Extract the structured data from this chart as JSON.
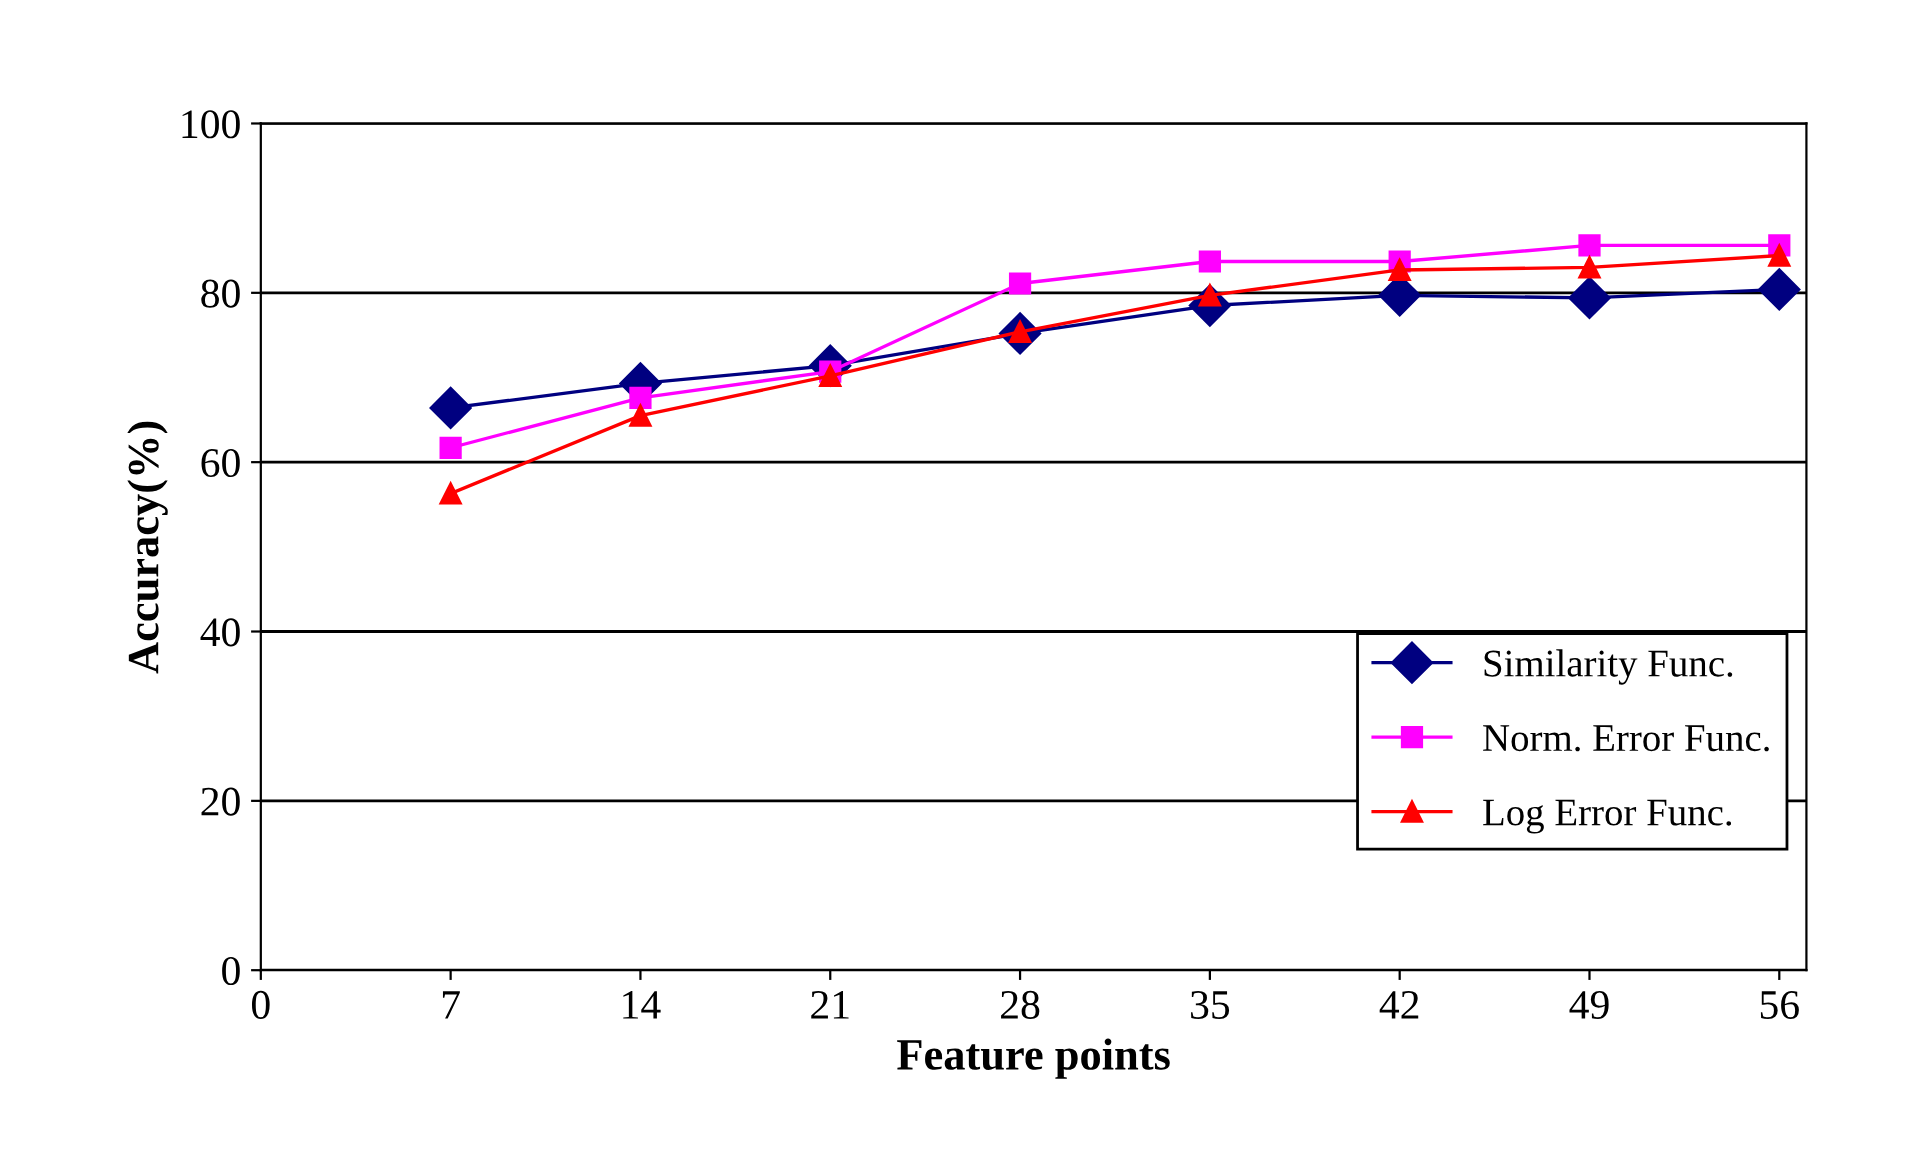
{
  "chart_data": {
    "type": "line",
    "xlabel": "Feature points",
    "ylabel": "Accuracy(%)",
    "x": [
      7,
      14,
      21,
      28,
      35,
      42,
      49,
      56
    ],
    "series": [
      {
        "name": "Similarity Func.",
        "color": "#000080",
        "marker": "diamond",
        "values": [
          66.4,
          69.3,
          71.4,
          75.2,
          78.5,
          79.7,
          79.4,
          80.4
        ]
      },
      {
        "name": "Norm. Error Func.",
        "color": "#ff00ff",
        "marker": "square",
        "values": [
          61.7,
          67.6,
          70.7,
          81.1,
          83.7,
          83.7,
          85.6,
          85.6
        ]
      },
      {
        "name": "Log Error Func.",
        "color": "#ff0000",
        "marker": "triangle",
        "values": [
          56.3,
          65.5,
          70.2,
          75.4,
          79.7,
          82.7,
          83.0,
          84.4
        ]
      }
    ],
    "xlim": [
      0,
      57
    ],
    "xticks": [
      0,
      7,
      14,
      21,
      28,
      35,
      42,
      49,
      56
    ],
    "ylim": [
      0,
      100
    ],
    "yticks": [
      0,
      20,
      40,
      60,
      80,
      100
    ],
    "grid": "y",
    "legend": "lower right"
  }
}
